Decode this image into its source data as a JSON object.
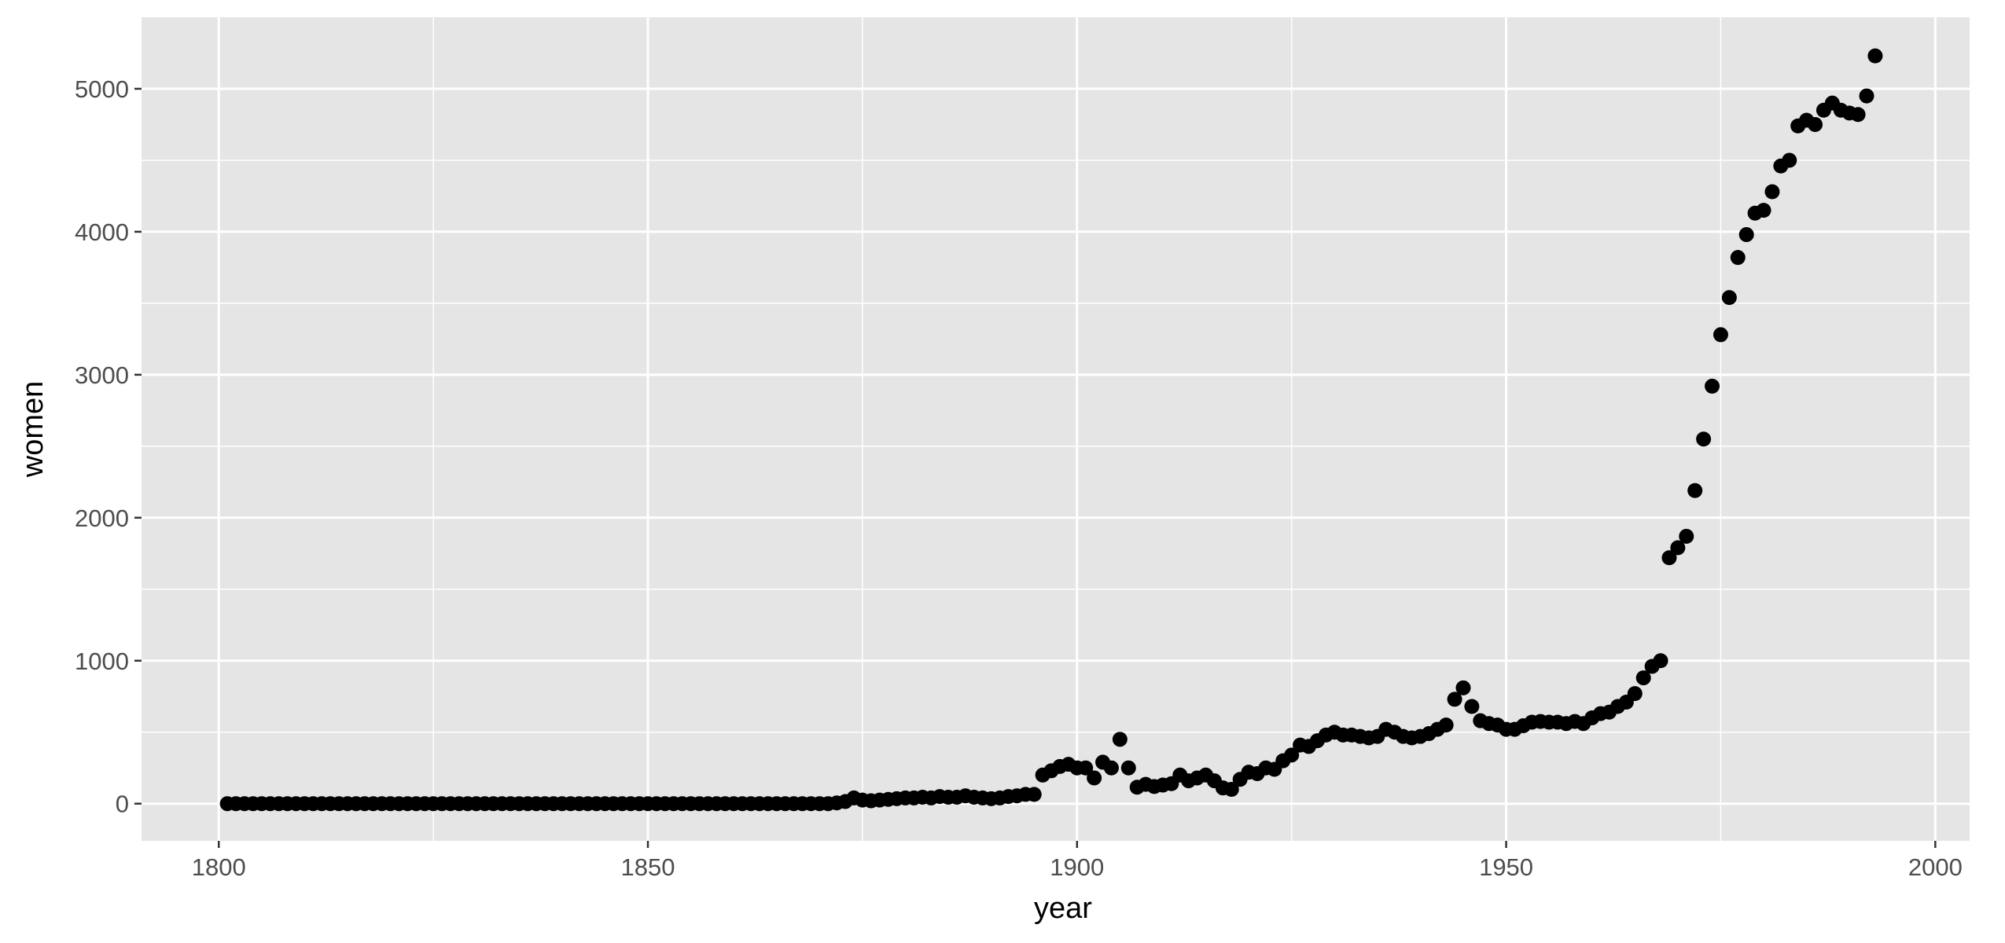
{
  "chart_data": {
    "type": "scatter",
    "title": "",
    "xlabel": "year",
    "ylabel": "women",
    "xlim": [
      1791,
      2004
    ],
    "ylim": [
      -260,
      5500
    ],
    "xticks_major": [
      1800,
      1850,
      1900,
      1950,
      2000
    ],
    "xticks_minor": [
      1825,
      1875,
      1925,
      1975
    ],
    "yticks_major": [
      0,
      1000,
      2000,
      3000,
      4000,
      5000
    ],
    "yticks_minor": [
      500,
      1500,
      2500,
      3500,
      4500
    ],
    "grid": true,
    "legend": "none",
    "colors": {
      "panel": "#e5e5e5",
      "grid": "#ffffff",
      "point": "#000000",
      "tick_text": "#4d4d4d"
    },
    "points": [
      [
        1801,
        0
      ],
      [
        1802,
        0
      ],
      [
        1803,
        0
      ],
      [
        1804,
        0
      ],
      [
        1805,
        0
      ],
      [
        1806,
        0
      ],
      [
        1807,
        0
      ],
      [
        1808,
        0
      ],
      [
        1809,
        0
      ],
      [
        1810,
        0
      ],
      [
        1811,
        0
      ],
      [
        1812,
        0
      ],
      [
        1813,
        0
      ],
      [
        1814,
        0
      ],
      [
        1815,
        0
      ],
      [
        1816,
        0
      ],
      [
        1817,
        0
      ],
      [
        1818,
        0
      ],
      [
        1819,
        0
      ],
      [
        1820,
        0
      ],
      [
        1821,
        0
      ],
      [
        1822,
        0
      ],
      [
        1823,
        0
      ],
      [
        1824,
        0
      ],
      [
        1825,
        0
      ],
      [
        1826,
        0
      ],
      [
        1827,
        0
      ],
      [
        1828,
        0
      ],
      [
        1829,
        0
      ],
      [
        1830,
        0
      ],
      [
        1831,
        0
      ],
      [
        1832,
        0
      ],
      [
        1833,
        0
      ],
      [
        1834,
        0
      ],
      [
        1835,
        0
      ],
      [
        1836,
        0
      ],
      [
        1837,
        0
      ],
      [
        1838,
        0
      ],
      [
        1839,
        0
      ],
      [
        1840,
        0
      ],
      [
        1841,
        0
      ],
      [
        1842,
        0
      ],
      [
        1843,
        0
      ],
      [
        1844,
        0
      ],
      [
        1845,
        0
      ],
      [
        1846,
        0
      ],
      [
        1847,
        0
      ],
      [
        1848,
        0
      ],
      [
        1849,
        0
      ],
      [
        1850,
        0
      ],
      [
        1851,
        0
      ],
      [
        1852,
        0
      ],
      [
        1853,
        0
      ],
      [
        1854,
        0
      ],
      [
        1855,
        0
      ],
      [
        1856,
        0
      ],
      [
        1857,
        0
      ],
      [
        1858,
        0
      ],
      [
        1859,
        0
      ],
      [
        1860,
        0
      ],
      [
        1861,
        0
      ],
      [
        1862,
        0
      ],
      [
        1863,
        0
      ],
      [
        1864,
        0
      ],
      [
        1865,
        0
      ],
      [
        1866,
        0
      ],
      [
        1867,
        0
      ],
      [
        1868,
        0
      ],
      [
        1869,
        0
      ],
      [
        1870,
        0
      ],
      [
        1871,
        0
      ],
      [
        1872,
        5
      ],
      [
        1873,
        15
      ],
      [
        1874,
        40
      ],
      [
        1875,
        25
      ],
      [
        1876,
        20
      ],
      [
        1877,
        25
      ],
      [
        1878,
        30
      ],
      [
        1879,
        35
      ],
      [
        1880,
        40
      ],
      [
        1881,
        40
      ],
      [
        1882,
        45
      ],
      [
        1883,
        40
      ],
      [
        1884,
        50
      ],
      [
        1885,
        45
      ],
      [
        1886,
        45
      ],
      [
        1887,
        55
      ],
      [
        1888,
        45
      ],
      [
        1889,
        40
      ],
      [
        1890,
        35
      ],
      [
        1891,
        40
      ],
      [
        1892,
        50
      ],
      [
        1893,
        55
      ],
      [
        1894,
        65
      ],
      [
        1895,
        65
      ],
      [
        1896,
        200
      ],
      [
        1897,
        230
      ],
      [
        1898,
        260
      ],
      [
        1899,
        275
      ],
      [
        1900,
        250
      ],
      [
        1901,
        250
      ],
      [
        1902,
        180
      ],
      [
        1903,
        290
      ],
      [
        1904,
        250
      ],
      [
        1905,
        450
      ],
      [
        1906,
        250
      ],
      [
        1907,
        115
      ],
      [
        1908,
        135
      ],
      [
        1909,
        120
      ],
      [
        1910,
        130
      ],
      [
        1911,
        140
      ],
      [
        1912,
        200
      ],
      [
        1913,
        160
      ],
      [
        1914,
        180
      ],
      [
        1915,
        200
      ],
      [
        1916,
        160
      ],
      [
        1917,
        110
      ],
      [
        1918,
        100
      ],
      [
        1919,
        170
      ],
      [
        1920,
        220
      ],
      [
        1921,
        210
      ],
      [
        1922,
        250
      ],
      [
        1923,
        240
      ],
      [
        1924,
        300
      ],
      [
        1925,
        340
      ],
      [
        1926,
        410
      ],
      [
        1927,
        400
      ],
      [
        1928,
        440
      ],
      [
        1929,
        480
      ],
      [
        1930,
        500
      ],
      [
        1931,
        480
      ],
      [
        1932,
        480
      ],
      [
        1933,
        470
      ],
      [
        1934,
        460
      ],
      [
        1935,
        470
      ],
      [
        1936,
        520
      ],
      [
        1937,
        500
      ],
      [
        1938,
        470
      ],
      [
        1939,
        460
      ],
      [
        1940,
        470
      ],
      [
        1941,
        490
      ],
      [
        1942,
        520
      ],
      [
        1943,
        550
      ],
      [
        1944,
        730
      ],
      [
        1945,
        810
      ],
      [
        1946,
        680
      ],
      [
        1947,
        580
      ],
      [
        1948,
        560
      ],
      [
        1949,
        550
      ],
      [
        1950,
        520
      ],
      [
        1951,
        520
      ],
      [
        1952,
        545
      ],
      [
        1953,
        570
      ],
      [
        1954,
        575
      ],
      [
        1955,
        570
      ],
      [
        1956,
        570
      ],
      [
        1957,
        560
      ],
      [
        1958,
        575
      ],
      [
        1959,
        560
      ],
      [
        1960,
        600
      ],
      [
        1961,
        630
      ],
      [
        1962,
        640
      ],
      [
        1963,
        680
      ],
      [
        1964,
        710
      ],
      [
        1965,
        770
      ],
      [
        1966,
        880
      ],
      [
        1967,
        960
      ],
      [
        1968,
        1000
      ],
      [
        1969,
        1720
      ],
      [
        1970,
        1790
      ],
      [
        1971,
        1870
      ],
      [
        1972,
        2190
      ],
      [
        1973,
        2550
      ],
      [
        1974,
        2920
      ],
      [
        1975,
        3280
      ],
      [
        1976,
        3540
      ],
      [
        1977,
        3820
      ],
      [
        1978,
        3980
      ],
      [
        1979,
        4130
      ],
      [
        1980,
        4150
      ],
      [
        1981,
        4280
      ],
      [
        1982,
        4460
      ],
      [
        1983,
        4500
      ],
      [
        1984,
        4740
      ],
      [
        1985,
        4780
      ],
      [
        1986,
        4750
      ],
      [
        1987,
        4850
      ],
      [
        1988,
        4900
      ],
      [
        1989,
        4850
      ],
      [
        1990,
        4830
      ],
      [
        1991,
        4820
      ],
      [
        1992,
        4950
      ],
      [
        1993,
        5230
      ]
    ]
  }
}
